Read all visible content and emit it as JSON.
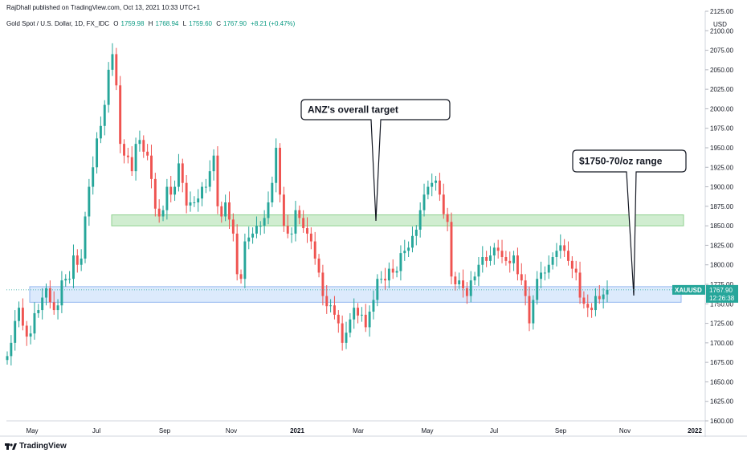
{
  "header": {
    "published": "RajDhall published on TradingView.com, Oct 13, 2021 10:33 UTC+1",
    "symbol_desc": "Gold Spot / U.S. Dollar, 1D, FX_IDC",
    "open_label": "O",
    "open": "1759.98",
    "high_label": "H",
    "high": "1768.94",
    "low_label": "L",
    "low": "1759.60",
    "close_label": "C",
    "close": "1767.90",
    "change": "+8.21 (+0.47%)"
  },
  "price_badge": {
    "symbol": "XAUUSD",
    "price": "1767.90",
    "countdown": "12:26:38"
  },
  "footer": {
    "brand": "TradingView"
  },
  "colors": {
    "up": "#26a69a",
    "down": "#ef5350",
    "green_zone": "#c8eac8",
    "blue_zone": "#d6e6fb"
  },
  "chart_data": {
    "type": "candlestick",
    "y_axis": {
      "unit": "USD",
      "ticks": [
        "2125.00",
        "2100.00",
        "2075.00",
        "2050.00",
        "2025.00",
        "2000.00",
        "1975.00",
        "1950.00",
        "1925.00",
        "1900.00",
        "1875.00",
        "1850.00",
        "1825.00",
        "1800.00",
        "1775.00",
        "1750.00",
        "1725.00",
        "1700.00",
        "1675.00",
        "1650.00",
        "1625.00",
        "1600.00"
      ],
      "ylim": [
        1600,
        2125
      ]
    },
    "x_axis": {
      "ticks": [
        "May",
        "Jul",
        "Sep",
        "Nov",
        "2021",
        "Mar",
        "May",
        "Jul",
        "Sep",
        "Nov",
        "2022"
      ]
    },
    "zones": [
      {
        "label": "green",
        "from": 1850,
        "to": 1864
      },
      {
        "label": "blue",
        "from": 1752,
        "to": 1772
      }
    ],
    "annotations": [
      {
        "text": "ANZ's overall target",
        "points_to": 1857
      },
      {
        "text": "$1750-70/oz range",
        "points_to": 1765
      }
    ],
    "series": [
      {
        "close": [
          1683,
          1700,
          1728,
          1745,
          1722,
          1708,
          1712,
          1738,
          1742,
          1758,
          1770,
          1752,
          1742,
          1748,
          1780,
          1782,
          1782,
          1812,
          1800,
          1808,
          1862,
          1900,
          1925,
          1962,
          1978,
          2005,
          2050,
          2070,
          2030,
          1955,
          1940,
          1938,
          1920,
          1955,
          1960,
          1945,
          1940,
          1910,
          1872,
          1862,
          1870,
          1900,
          1890,
          1900,
          1930,
          1905,
          1876,
          1880,
          1880,
          1885,
          1900,
          1900,
          1920,
          1940,
          1875,
          1862,
          1880,
          1858,
          1840,
          1788,
          1782,
          1830,
          1835,
          1840,
          1850,
          1850,
          1860,
          1880,
          1905,
          1950,
          1890,
          1850,
          1840,
          1840,
          1870,
          1860,
          1847,
          1840,
          1830,
          1808,
          1790,
          1760,
          1747,
          1748,
          1736,
          1725,
          1700,
          1713,
          1730,
          1745,
          1735,
          1736,
          1720,
          1740,
          1755,
          1782,
          1782,
          1780,
          1795,
          1790,
          1792,
          1815,
          1818,
          1822,
          1837,
          1845,
          1870,
          1890,
          1900,
          1905,
          1908,
          1890,
          1865,
          1855,
          1785,
          1775,
          1780,
          1770,
          1760,
          1780,
          1785,
          1800,
          1810,
          1805,
          1812,
          1822,
          1818,
          1810,
          1805,
          1802,
          1812,
          1788,
          1780,
          1760,
          1725,
          1755,
          1782,
          1790,
          1790,
          1800,
          1810,
          1818,
          1825,
          1818,
          1805,
          1795,
          1790,
          1758,
          1750,
          1745,
          1742,
          1760,
          1756,
          1762,
          1768
        ]
      }
    ]
  }
}
